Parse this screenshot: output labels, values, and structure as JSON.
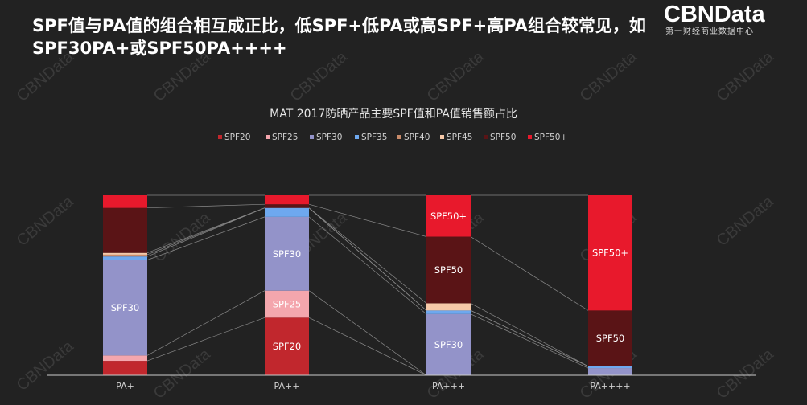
{
  "header": {
    "title": "SPF值与PA值的组合相互成正比，低SPF+低PA或高SPF+高PA组合较常见，如SPF30PA+或SPF50PA++++",
    "logo_main": "CBNData",
    "logo_sub": "第一财经商业数据中心",
    "watermark": "CBNData"
  },
  "colors": {
    "background": "#222222",
    "SPF20": "#c1272d",
    "SPF25": "#f4a6ad",
    "SPF30": "#9393c9",
    "SPF35": "#6ea8ef",
    "SPF40": "#c98b6a",
    "SPF45": "#f6c9a9",
    "SPF50": "#5a1416",
    "SPF50+": "#e8192c"
  },
  "chart_data": {
    "type": "bar",
    "stacked": true,
    "normalized": true,
    "title": "MAT 2017防晒产品主要SPF值和PA值销售额占比",
    "categories": [
      "PA+",
      "PA++",
      "PA+++",
      "PA++++"
    ],
    "ylim": [
      0,
      1
    ],
    "legend_position": "top",
    "series": [
      {
        "name": "SPF20",
        "values": [
          0.08,
          0.32,
          0.0,
          0.0
        ]
      },
      {
        "name": "SPF25",
        "values": [
          0.03,
          0.15,
          0.0,
          0.0
        ]
      },
      {
        "name": "SPF30",
        "values": [
          0.53,
          0.41,
          0.34,
          0.04
        ]
      },
      {
        "name": "SPF35",
        "values": [
          0.02,
          0.05,
          0.02,
          0.01
        ]
      },
      {
        "name": "SPF40",
        "values": [
          0.01,
          0.0,
          0.0,
          0.0
        ]
      },
      {
        "name": "SPF45",
        "values": [
          0.01,
          0.0,
          0.04,
          0.0
        ]
      },
      {
        "name": "SPF50",
        "values": [
          0.25,
          0.02,
          0.37,
          0.31
        ]
      },
      {
        "name": "SPF50+",
        "values": [
          0.07,
          0.05,
          0.23,
          0.64
        ]
      }
    ],
    "segment_labels": [
      {
        "category": "PA+",
        "series": "SPF30",
        "text": "SPF30"
      },
      {
        "category": "PA++",
        "series": "SPF30",
        "text": "SPF30"
      },
      {
        "category": "PA++",
        "series": "SPF25",
        "text": "SPF25"
      },
      {
        "category": "PA++",
        "series": "SPF20",
        "text": "SPF20"
      },
      {
        "category": "PA+++",
        "series": "SPF50+",
        "text": "SPF50+"
      },
      {
        "category": "PA+++",
        "series": "SPF50",
        "text": "SPF50"
      },
      {
        "category": "PA+++",
        "series": "SPF30",
        "text": "SPF30"
      },
      {
        "category": "PA++++",
        "series": "SPF50+",
        "text": "SPF50+"
      },
      {
        "category": "PA++++",
        "series": "SPF50",
        "text": "SPF50"
      }
    ]
  }
}
